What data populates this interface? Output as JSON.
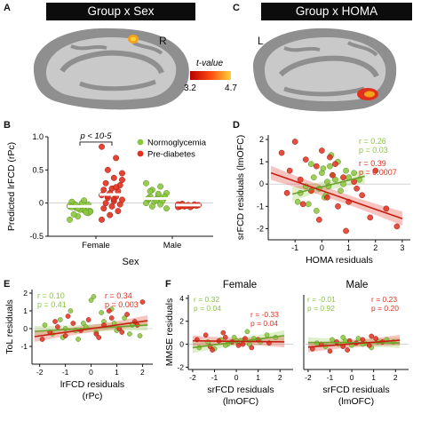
{
  "panels": {
    "A": {
      "letter": "A",
      "title": "Group x Sex",
      "hemisphere": "R"
    },
    "C": {
      "letter": "C",
      "title": "Group x HOMA",
      "hemisphere": "L"
    },
    "colorbar": {
      "label": "t-value",
      "min": "3.2",
      "max": "4.7"
    },
    "B": {
      "letter": "B"
    },
    "D": {
      "letter": "D"
    },
    "E": {
      "letter": "E"
    },
    "F": {
      "letter": "F",
      "left_title": "Female",
      "right_title": "Male"
    }
  },
  "colors": {
    "normoglycemia": "#8cc63f",
    "prediabetes": "#e0301e",
    "banner": "#0c0c0c",
    "brain_gyri": "#c8c8c8",
    "brain_sulci": "#8e8e8e",
    "cluster": "#f5a21a"
  },
  "chart_data": [
    {
      "type": "scatter",
      "panel": "B",
      "xlabel": "Sex",
      "ylabel": "Predicted lrFCD (rPc)",
      "categories": [
        "Female",
        "Male"
      ],
      "ylim": [
        -0.5,
        1.0
      ],
      "yticks": [
        "-0.5",
        "0",
        "0.5",
        "1.0"
      ],
      "annotation": "p < 10-5",
      "legend": [
        "Normoglycemia",
        "Pre-diabetes"
      ],
      "means": {
        "Normoglycemia": [
          -0.05,
          0.07
        ],
        "Pre-diabetes": [
          0.13,
          -0.03
        ]
      },
      "series": [
        {
          "name": "Normoglycemia",
          "category": "Female",
          "values": [
            -0.05,
            -0.1,
            -0.03,
            -0.12,
            -0.08,
            -0.01,
            -0.15,
            -0.06,
            0.02,
            -0.09,
            -0.2,
            -0.04,
            -0.11,
            -0.07,
            -0.13,
            0.0,
            -0.17,
            -0.02,
            -0.1,
            -0.06,
            -0.14,
            -0.08,
            -0.25,
            0.04,
            -0.03
          ]
        },
        {
          "name": "Pre-diabetes",
          "category": "Female",
          "values": [
            0.85,
            0.68,
            0.5,
            0.45,
            0.38,
            0.3,
            0.27,
            0.22,
            0.2,
            0.18,
            0.15,
            0.12,
            0.1,
            0.08,
            0.05,
            0.03,
            0.0,
            -0.02,
            -0.05,
            -0.08,
            -0.12,
            -0.18,
            -0.25,
            0.24,
            0.11,
            0.35,
            0.06
          ]
        },
        {
          "name": "Normoglycemia",
          "category": "Male",
          "values": [
            0.3,
            0.25,
            0.2,
            0.15,
            0.12,
            0.1,
            0.08,
            0.06,
            0.05,
            0.03,
            0.02,
            0.0,
            -0.02,
            -0.05,
            -0.08,
            0.14,
            0.18,
            0.1,
            0.04,
            0.07
          ]
        },
        {
          "name": "Pre-diabetes",
          "category": "Male",
          "values": [
            -0.02,
            -0.04,
            -0.05,
            -0.03,
            -0.06,
            -0.01,
            -0.04,
            -0.03,
            -0.05,
            -0.02,
            -0.04,
            -0.06
          ]
        }
      ]
    },
    {
      "type": "scatter",
      "panel": "D",
      "xlabel": "HOMA residuals",
      "ylabel": "srFCD residuals (lmOFC)",
      "xlim": [
        -2,
        3.3
      ],
      "ylim": [
        -2.5,
        2.2
      ],
      "xticks": [
        "-1",
        "0",
        "1",
        "2",
        "3"
      ],
      "yticks": [
        "-2",
        "-1",
        "0",
        "1",
        "2"
      ],
      "stats": [
        {
          "name": "Normoglycemia",
          "r": "r = 0.26",
          "p": "p = 0.03"
        },
        {
          "name": "Pre-diabetes",
          "r": "r = 0.39",
          "p": "p = 0.0007"
        }
      ],
      "fits": [
        {
          "name": "Normoglycemia",
          "x": [
            -1.1,
            1.6
          ],
          "y": [
            -0.45,
            0.35
          ]
        },
        {
          "name": "Pre-diabetes",
          "x": [
            -1.9,
            3.0
          ],
          "y": [
            0.5,
            -1.55
          ]
        }
      ],
      "series": [
        {
          "name": "Normoglycemia",
          "x": [
            -0.8,
            -0.5,
            -0.3,
            -0.1,
            0.0,
            0.1,
            0.2,
            0.3,
            0.5,
            0.7,
            0.9,
            -0.6,
            -0.2,
            0.4,
            0.6,
            0.8,
            1.0,
            1.2,
            -0.4,
            0.15,
            0.35,
            -0.9,
            1.4,
            0.05,
            0.25
          ],
          "y": [
            -0.4,
            -0.9,
            0.3,
            -0.2,
            0.5,
            -0.6,
            0.1,
            0.8,
            0.2,
            -0.3,
            0.6,
            -0.1,
            -1.2,
            0.4,
            1.0,
            0.0,
            0.3,
            0.5,
            0.9,
            -0.5,
            1.3,
            -0.8,
            0.2,
            0.7,
            -0.1
          ]
        },
        {
          "name": "Pre-diabetes",
          "x": [
            -1.5,
            -1.2,
            -1.0,
            -0.8,
            -0.6,
            -0.4,
            -0.2,
            0.0,
            0.2,
            0.4,
            0.6,
            0.8,
            1.0,
            1.2,
            1.5,
            1.8,
            2.0,
            2.4,
            2.8,
            -0.7,
            -0.1,
            0.3,
            0.9,
            1.3,
            -1.3,
            0.5
          ],
          "y": [
            1.4,
            0.6,
            1.9,
            0.2,
            1.1,
            -0.3,
            0.8,
            1.5,
            -0.6,
            0.4,
            -1.0,
            0.3,
            -0.8,
            0.1,
            -0.5,
            -1.5,
            0.6,
            -1.1,
            -1.9,
            -0.9,
            -1.6,
            1.2,
            -2.1,
            -0.2,
            -0.4,
            0.9
          ]
        }
      ]
    },
    {
      "type": "scatter",
      "panel": "E",
      "xlabel": "lrFCD residuals (rPc)",
      "ylabel": "ToL residuals",
      "xlim": [
        -2.3,
        2.4
      ],
      "ylim": [
        -2.0,
        2.2
      ],
      "xticks": [
        "-2",
        "-1",
        "0",
        "1",
        "2"
      ],
      "yticks": [
        "-1",
        "0",
        "1",
        "2"
      ],
      "stats": [
        {
          "name": "Normoglycemia",
          "r": "r = 0.10",
          "p": "p = 0.41"
        },
        {
          "name": "Pre-diabetes",
          "r": "r = 0.34",
          "p": "p = 0.003"
        }
      ],
      "fits": [
        {
          "name": "Normoglycemia",
          "x": [
            -2.2,
            2.2
          ],
          "y": [
            -0.15,
            0.2
          ]
        },
        {
          "name": "Pre-diabetes",
          "x": [
            -2.2,
            2.2
          ],
          "y": [
            -0.45,
            0.45
          ]
        }
      ],
      "series": [
        {
          "name": "Normoglycemia",
          "x": [
            -1.8,
            -1.5,
            -1.2,
            -1.0,
            -0.8,
            -0.5,
            -0.3,
            0.0,
            0.2,
            0.5,
            0.8,
            1.0,
            1.3,
            1.6,
            1.9,
            -0.6,
            0.4,
            0.9,
            -1.1,
            0.1,
            1.5,
            -0.2
          ],
          "y": [
            0.2,
            -0.3,
            0.5,
            0.0,
            1.0,
            -0.6,
            0.3,
            1.6,
            -0.2,
            0.4,
            1.1,
            -0.1,
            0.6,
            0.2,
            -0.4,
            -0.1,
            0.9,
            0.3,
            -0.5,
            1.8,
            -0.3,
            0.1
          ]
        },
        {
          "name": "Pre-diabetes",
          "x": [
            -1.9,
            -1.6,
            -1.3,
            -1.0,
            -0.7,
            -0.4,
            -0.1,
            0.2,
            0.5,
            0.8,
            1.1,
            1.4,
            1.7,
            2.0,
            -0.9,
            0.3,
            0.7,
            1.2,
            -1.4,
            1.8
          ],
          "y": [
            -0.6,
            -0.2,
            0.1,
            -0.4,
            0.3,
            -0.1,
            0.5,
            -0.3,
            0.2,
            0.6,
            0.0,
            0.8,
            0.4,
            1.5,
            0.7,
            -0.5,
            1.0,
            -0.2,
            0.4,
            0.2
          ]
        }
      ]
    },
    {
      "type": "scatter",
      "panel": "F-Female",
      "title": "Female",
      "xlabel": "srFCD residuals (lmOFC)",
      "ylabel": "MMSE residuals",
      "xlim": [
        -2.2,
        2.6
      ],
      "ylim": [
        -2.2,
        4.3
      ],
      "xticks": [
        "-2",
        "-1",
        "0",
        "1",
        "2"
      ],
      "yticks": [
        "-2",
        "0",
        "2",
        "4"
      ],
      "stats": [
        {
          "name": "Normoglycemia",
          "r": "r = 0.32",
          "p": "p = 0.04"
        },
        {
          "name": "Pre-diabetes",
          "r": "r = -0.33",
          "p": "p = 0.04"
        }
      ],
      "fits": [
        {
          "name": "Normoglycemia",
          "x": [
            -2.0,
            2.2
          ],
          "y": [
            -0.3,
            0.75
          ]
        },
        {
          "name": "Pre-diabetes",
          "x": [
            -2.0,
            2.2
          ],
          "y": [
            0.3,
            0.2
          ]
        }
      ],
      "series": [
        {
          "name": "Normoglycemia",
          "x": [
            -1.7,
            -1.3,
            -1.0,
            -0.7,
            -0.4,
            -0.1,
            0.2,
            0.5,
            0.8,
            1.1,
            1.4,
            1.8,
            -0.5,
            0.0,
            0.6
          ],
          "y": [
            -0.3,
            0.2,
            -0.4,
            0.4,
            0.0,
            0.6,
            0.3,
            1.1,
            0.5,
            0.2,
            0.8,
            0.6,
            -0.1,
            0.3,
            0.0
          ]
        },
        {
          "name": "Pre-diabetes",
          "x": [
            -1.8,
            -1.4,
            -1.1,
            -0.8,
            -0.5,
            -0.2,
            0.1,
            0.4,
            0.7,
            1.0,
            -0.6,
            0.3,
            1.5,
            -1.2
          ],
          "y": [
            0.4,
            0.8,
            -0.5,
            0.3,
            0.6,
            0.2,
            -0.1,
            0.5,
            -0.3,
            0.4,
            1.0,
            0.0,
            0.1,
            -0.2
          ]
        }
      ]
    },
    {
      "type": "scatter",
      "panel": "F-Male",
      "title": "Male",
      "xlabel": "srFCD residuals (lmOFC)",
      "ylabel": "",
      "xlim": [
        -2.2,
        2.6
      ],
      "ylim": [
        -2.2,
        4.3
      ],
      "xticks": [
        "-2",
        "-1",
        "0",
        "1",
        "2"
      ],
      "yticks": [],
      "stats": [
        {
          "name": "Normoglycemia",
          "r": "r = -0.01",
          "p": "p = 0.92"
        },
        {
          "name": "Pre-diabetes",
          "r": "r = 0.23",
          "p": "p = 0.20"
        }
      ],
      "fits": [
        {
          "name": "Normoglycemia",
          "x": [
            -2.0,
            2.2
          ],
          "y": [
            0.15,
            0.12
          ]
        },
        {
          "name": "Pre-diabetes",
          "x": [
            -2.0,
            2.2
          ],
          "y": [
            -0.25,
            0.35
          ]
        }
      ],
      "series": [
        {
          "name": "Normoglycemia",
          "x": [
            -1.6,
            -1.2,
            -0.9,
            -0.6,
            -0.3,
            0.0,
            0.3,
            0.6,
            0.9,
            1.2,
            1.6,
            -0.4,
            0.5,
            1.9
          ],
          "y": [
            0.1,
            -0.2,
            0.4,
            0.0,
            0.3,
            -0.1,
            0.5,
            0.1,
            -0.3,
            0.2,
            0.4,
            0.6,
            0.0,
            0.2
          ]
        },
        {
          "name": "Pre-diabetes",
          "x": [
            -1.8,
            -1.4,
            -1.0,
            -0.7,
            -0.4,
            -0.1,
            0.2,
            0.5,
            0.8,
            1.1,
            1.4,
            -0.2,
            0.9
          ],
          "y": [
            -0.4,
            0.0,
            -0.6,
            0.2,
            -0.2,
            0.3,
            0.1,
            0.4,
            -0.1,
            0.5,
            0.2,
            -0.5,
            0.7
          ]
        }
      ]
    }
  ]
}
